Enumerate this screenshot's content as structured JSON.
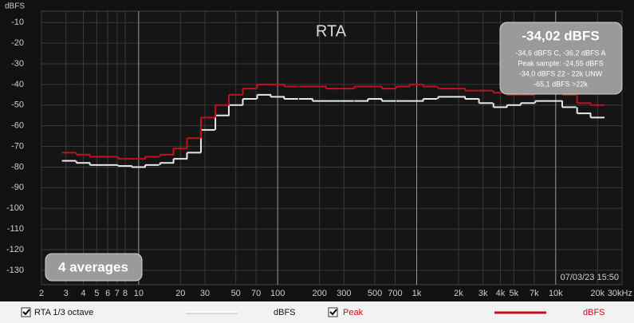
{
  "chart_data": {
    "type": "step",
    "title": "RTA",
    "y_label": "dBFS",
    "info": {
      "main": "-34,02 dBFS",
      "lines": [
        "-34,6 dBFS C, -36,2 dBFS A",
        "Peak sample: -24,55 dBFS",
        "-34,0 dBFS 22 - 22k UNW",
        "-65,1 dBFS >22k"
      ]
    },
    "averages": "4 averages",
    "timestamp": "07/03/23 15:50",
    "x": [
      3.15,
      4,
      5,
      6.3,
      8,
      10,
      12.5,
      16,
      20,
      25,
      31.5,
      40,
      50,
      63,
      80,
      100,
      125,
      160,
      200,
      250,
      315,
      400,
      500,
      630,
      800,
      1000,
      1250,
      1600,
      2000,
      2500,
      3150,
      4000,
      5000,
      6300,
      8000,
      10000,
      12500,
      16000,
      20000
    ],
    "series": [
      {
        "name": "RTA 1/3 octave",
        "unit": "dBFS",
        "color": "#e8e8e8",
        "values": [
          -77,
          -78,
          -79,
          -79,
          -79.5,
          -80,
          -79,
          -78,
          -76,
          -73,
          -62,
          -55,
          -50,
          -47,
          -45,
          -46,
          -47,
          -47,
          -48,
          -48,
          -48,
          -48,
          -47,
          -48,
          -48,
          -48,
          -47,
          -46,
          -46,
          -47,
          -49,
          -51,
          -50,
          -49,
          -48,
          -48,
          -51,
          -54,
          -56
        ]
      },
      {
        "name": "Peak",
        "unit": "dBFS",
        "color": "#c0121a",
        "values": [
          -73,
          -74,
          -75,
          -75,
          -76,
          -76,
          -75,
          -74,
          -71,
          -66,
          -56,
          -50,
          -45,
          -42,
          -40,
          -40,
          -41,
          -41,
          -41,
          -42,
          -42,
          -41,
          -41,
          -42,
          -41,
          -40,
          -41,
          -42,
          -42,
          -43,
          -43,
          -44,
          -45,
          -45,
          -44,
          -44,
          -45,
          -49,
          -50
        ]
      }
    ],
    "xlim": [
      2,
      30000
    ],
    "ylim": [
      -4.5,
      -137
    ],
    "log_x": true,
    "grid": true,
    "yticks": [
      -10,
      -20,
      -30,
      -40,
      -50,
      -60,
      -70,
      -80,
      -90,
      -100,
      -110,
      -120,
      -130
    ],
    "xticks": [
      2,
      3,
      4,
      5,
      6,
      7,
      8,
      10,
      20,
      30,
      50,
      70,
      100,
      200,
      300,
      500,
      700,
      {
        "value": 1000,
        "label": "1k"
      },
      {
        "value": 2000,
        "label": "2k"
      },
      {
        "value": 3000,
        "label": "3k"
      },
      {
        "value": 4000,
        "label": "4k"
      },
      {
        "value": 5000,
        "label": "5k"
      },
      {
        "value": 7000,
        "label": "7k"
      },
      {
        "value": 10000,
        "label": "10k"
      },
      {
        "value": 20000,
        "label": "20k"
      },
      {
        "value": 30000,
        "label": "30kHz"
      }
    ]
  }
}
